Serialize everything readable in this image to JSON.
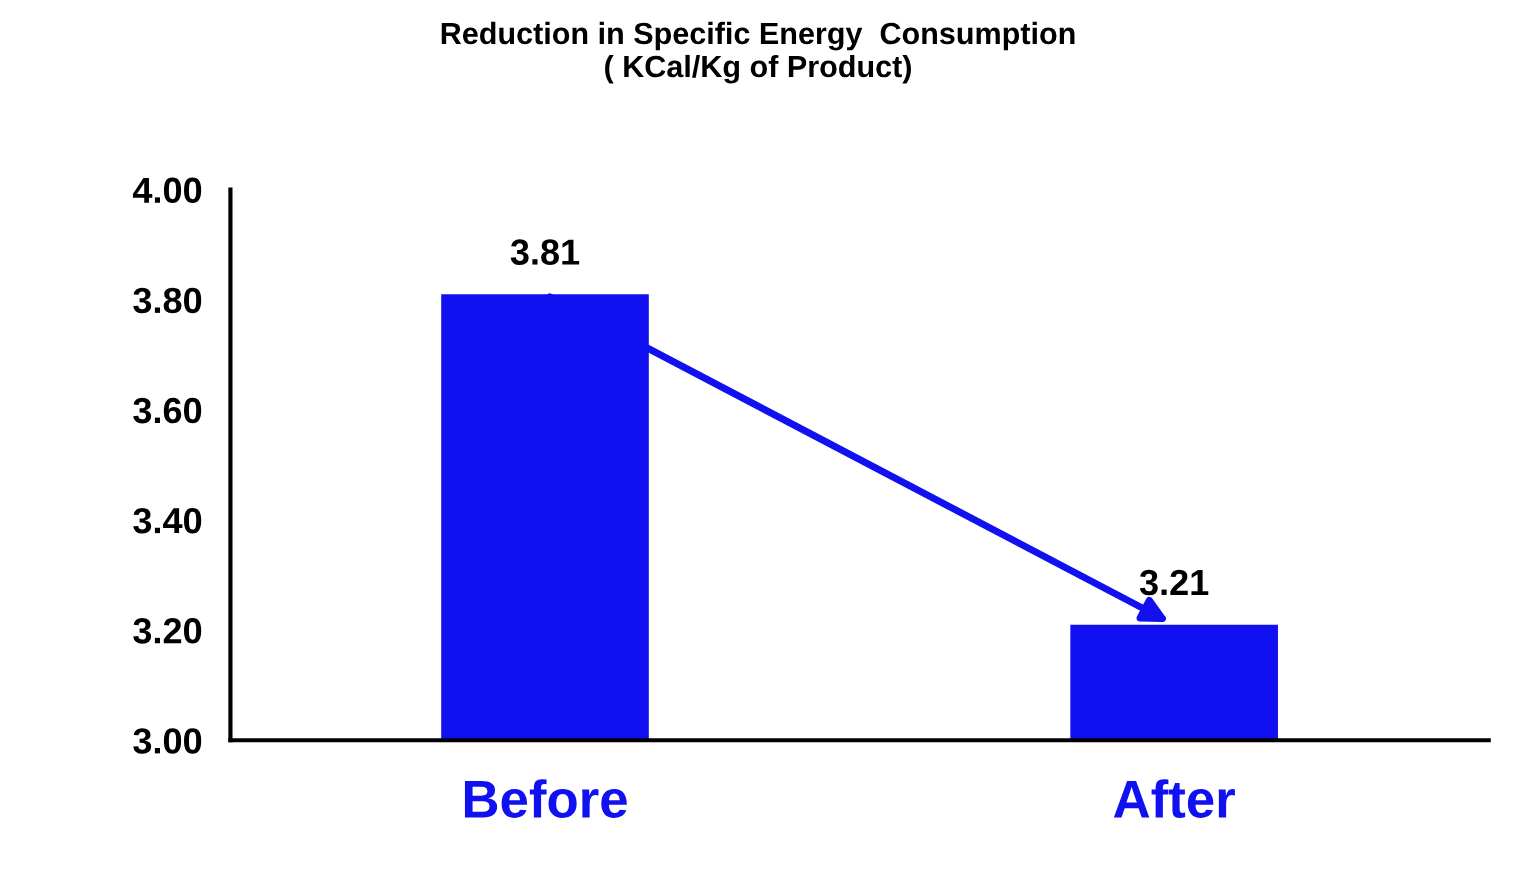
{
  "chart_data": {
    "type": "bar",
    "title": "Reduction in Specific Energy  Consumption\n( KCal/Kg of Product)",
    "categories": [
      "Before",
      "After"
    ],
    "values": [
      3.81,
      3.21
    ],
    "color": "#1010f0",
    "ylim": [
      3.0,
      4.0
    ],
    "yticks": [
      {
        "value": 3.0,
        "label": "3.00"
      },
      {
        "value": 3.2,
        "label": "3.20"
      },
      {
        "value": 3.4,
        "label": "3.40"
      },
      {
        "value": 3.6,
        "label": "3.60"
      },
      {
        "value": 3.8,
        "label": "3.80"
      },
      {
        "value": 4.0,
        "label": "4.00"
      }
    ],
    "data_labels": true,
    "grid": false,
    "legend": false
  }
}
